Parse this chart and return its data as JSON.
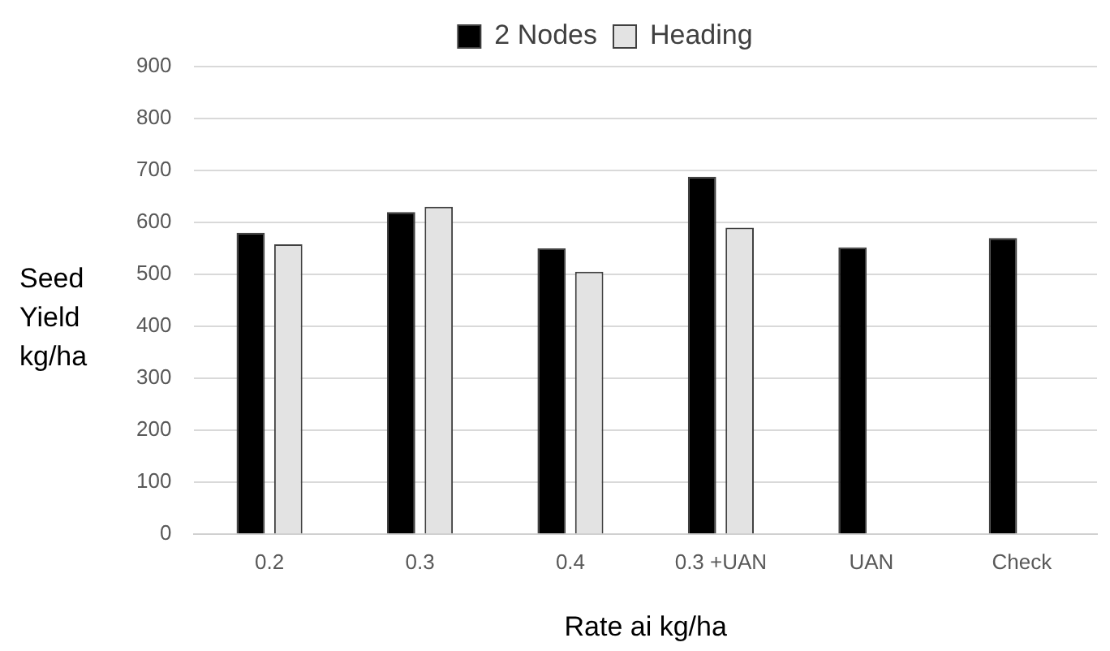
{
  "chart_data": {
    "type": "bar",
    "xlabel": "Rate ai kg/ha",
    "ylabel": "Seed Yield kg/ha",
    "categories": [
      "0.2",
      "0.3",
      "0.4",
      "0.3 +UAN",
      "UAN",
      "Check"
    ],
    "series": [
      {
        "name": "2 Nodes",
        "color": "#000000",
        "values": [
          580,
          620,
          550,
          688,
          552,
          570
        ]
      },
      {
        "name": "Heading",
        "color": "#e3e3e3",
        "values": [
          558,
          630,
          505,
          590,
          null,
          null
        ]
      }
    ],
    "ylim": [
      0,
      900
    ],
    "yticks": [
      0,
      100,
      200,
      300,
      400,
      500,
      600,
      700,
      800,
      900
    ],
    "grid": "y",
    "legend": "top"
  }
}
